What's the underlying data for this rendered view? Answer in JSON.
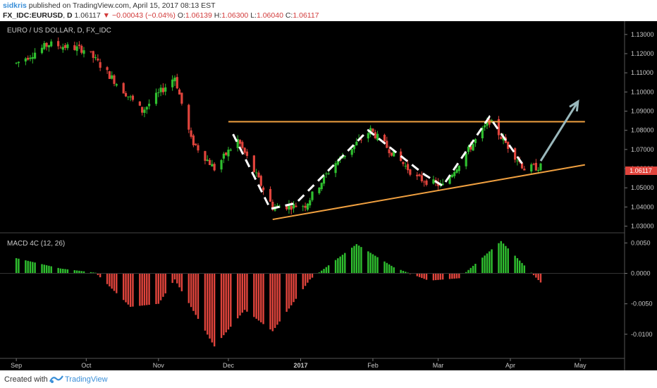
{
  "header": {
    "author": "sidkris",
    "published_text": "published on TradingView.com, April 15, 2017 08:13 EST",
    "symbol": "FX_IDC:EURUSD",
    "interval": "D",
    "last": "1.06117",
    "change": "−0.00043 (−0.04%)",
    "open_label": "O:",
    "open": "1.06139",
    "high_label": "H:",
    "high": "1.06300",
    "low_label": "L:",
    "low": "1.06040",
    "close_label": "C:",
    "close": "1.06117"
  },
  "footer": {
    "created_with": "Created with",
    "brand": "TradingView",
    "logo_icon": "tradingview-logo-icon"
  },
  "colors": {
    "up": "#2fbf2f",
    "down": "#e0443c",
    "trendline": "#f0a040",
    "arrow": "#9ab8bc",
    "price_tag": "#e0443c",
    "text": "#c8c8c8"
  },
  "chart_data": [
    {
      "type": "candlestick",
      "title": "EURO / US DOLLAR, D, FX_IDC",
      "y_ticks": [
        "1.13000",
        "1.12000",
        "1.11000",
        "1.10000",
        "1.09000",
        "1.08000",
        "1.07000",
        "1.06000",
        "1.05000",
        "1.04000",
        "1.03000"
      ],
      "ylim": [
        1.028,
        1.134
      ],
      "x_ticks": [
        "Sep",
        "Oct",
        "Nov",
        "Dec",
        "2017",
        "Feb",
        "Mar",
        "Apr",
        "May"
      ],
      "last_price_tag": "1.06117",
      "legend": "none",
      "grid": false,
      "approx_close_path": [
        {
          "x": "2016-09-01",
          "y": 1.115
        },
        {
          "x": "2016-09-15",
          "y": 1.125
        },
        {
          "x": "2016-10-01",
          "y": 1.122
        },
        {
          "x": "2016-10-10",
          "y": 1.11
        },
        {
          "x": "2016-10-25",
          "y": 1.09
        },
        {
          "x": "2016-11-08",
          "y": 1.108
        },
        {
          "x": "2016-11-15",
          "y": 1.075
        },
        {
          "x": "2016-11-25",
          "y": 1.06
        },
        {
          "x": "2016-12-05",
          "y": 1.075
        },
        {
          "x": "2016-12-20",
          "y": 1.04
        },
        {
          "x": "2017-01-03",
          "y": 1.041
        },
        {
          "x": "2017-01-15",
          "y": 1.062
        },
        {
          "x": "2017-01-31",
          "y": 1.08
        },
        {
          "x": "2017-02-20",
          "y": 1.055
        },
        {
          "x": "2017-03-03",
          "y": 1.051
        },
        {
          "x": "2017-03-23",
          "y": 1.085
        },
        {
          "x": "2017-04-07",
          "y": 1.06
        },
        {
          "x": "2017-04-14",
          "y": 1.061
        }
      ],
      "annotations": [
        {
          "type": "horizontal-line",
          "name": "resistance",
          "y": 1.0845,
          "x_from": "2016-12-01",
          "x_to": "2017-05-03"
        },
        {
          "type": "trendline",
          "name": "rising-support",
          "from": {
            "x": "2016-12-20",
            "y": 1.0335
          },
          "to": {
            "x": "2017-05-03",
            "y": 1.062
          }
        },
        {
          "type": "arrow",
          "name": "projection",
          "from": {
            "x": "2017-04-14",
            "y": 1.064
          },
          "to": {
            "x": "2017-04-30",
            "y": 1.095
          }
        },
        {
          "type": "dashed-path",
          "name": "swing-path",
          "points": [
            {
              "x": "2016-12-03",
              "y": 1.078
            },
            {
              "x": "2016-12-19",
              "y": 1.039
            },
            {
              "x": "2016-12-30",
              "y": 1.042
            },
            {
              "x": "2017-01-30",
              "y": 1.08
            },
            {
              "x": "2017-02-23",
              "y": 1.057
            },
            {
              "x": "2017-03-03",
              "y": 1.051
            },
            {
              "x": "2017-03-23",
              "y": 1.087
            },
            {
              "x": "2017-04-07",
              "y": 1.061
            }
          ]
        }
      ]
    },
    {
      "type": "bar",
      "title": "MACD 4C (12, 26)",
      "y_ticks": [
        "0.0050",
        "0.0000",
        "-0.0050",
        "-0.0100"
      ],
      "ylim": [
        -0.0135,
        0.0062
      ],
      "histogram": [
        {
          "x": "2016-09-01",
          "y": 0.0025
        },
        {
          "x": "2016-09-20",
          "y": 0.0008
        },
        {
          "x": "2016-10-05",
          "y": 0.0001
        },
        {
          "x": "2016-10-20",
          "y": -0.0055
        },
        {
          "x": "2016-11-01",
          "y": -0.005
        },
        {
          "x": "2016-11-08",
          "y": -0.001
        },
        {
          "x": "2016-11-25",
          "y": -0.012
        },
        {
          "x": "2016-12-08",
          "y": -0.006
        },
        {
          "x": "2016-12-20",
          "y": -0.0095
        },
        {
          "x": "2017-01-05",
          "y": -0.001
        },
        {
          "x": "2017-01-25",
          "y": 0.0048
        },
        {
          "x": "2017-02-10",
          "y": 0.001
        },
        {
          "x": "2017-02-25",
          "y": -0.0012
        },
        {
          "x": "2017-03-10",
          "y": -0.0008
        },
        {
          "x": "2017-03-28",
          "y": 0.0053
        },
        {
          "x": "2017-04-10",
          "y": 0.0001
        },
        {
          "x": "2017-04-14",
          "y": -0.0015
        }
      ]
    }
  ]
}
